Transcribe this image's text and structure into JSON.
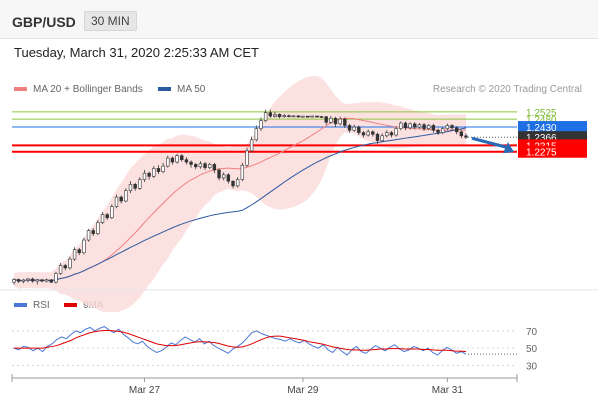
{
  "header": {
    "symbol": "GBP/USD",
    "timeframe": "30 MIN"
  },
  "timestamp": "Tuesday, March 31, 2020 2:25:33 AM CET",
  "legend": {
    "main": [
      {
        "label": "MA 20 + Bollinger Bands",
        "color": "#f08080"
      },
      {
        "label": "MA 50",
        "color": "#2a5aa0"
      }
    ],
    "rsi": [
      {
        "label": "RSI",
        "color": "#4a78d4"
      },
      {
        "label": "9MA",
        "color": "#e00000"
      }
    ]
  },
  "copyright": "Research © 2020 Trading Central",
  "chart_data": [
    {
      "type": "line",
      "panel": "price",
      "ylim": [
        1.145,
        1.26
      ],
      "x_ticks": [
        "Mar 27",
        "Mar 29",
        "Mar 31"
      ],
      "candles": [
        [
          1.1455,
          1.1472,
          1.144,
          1.148
        ],
        [
          1.1472,
          1.146,
          1.145,
          1.1478
        ],
        [
          1.146,
          1.1468,
          1.1448,
          1.1476
        ],
        [
          1.1468,
          1.1475,
          1.1455,
          1.1482
        ],
        [
          1.1475,
          1.1462,
          1.1452,
          1.1484
        ],
        [
          1.1462,
          1.147,
          1.144,
          1.1476
        ],
        [
          1.147,
          1.1462,
          1.1455,
          1.1475
        ],
        [
          1.1462,
          1.147,
          1.1454,
          1.1478
        ],
        [
          1.147,
          1.1455,
          1.145,
          1.1475
        ],
        [
          1.1455,
          1.151,
          1.1448,
          1.152
        ],
        [
          1.151,
          1.156,
          1.1502,
          1.1575
        ],
        [
          1.156,
          1.1545,
          1.153,
          1.157
        ],
        [
          1.1545,
          1.16,
          1.1535,
          1.1615
        ],
        [
          1.16,
          1.166,
          1.159,
          1.1675
        ],
        [
          1.166,
          1.164,
          1.1625,
          1.167
        ],
        [
          1.164,
          1.172,
          1.163,
          1.1735
        ],
        [
          1.172,
          1.178,
          1.171,
          1.179
        ],
        [
          1.178,
          1.176,
          1.1745,
          1.1795
        ],
        [
          1.176,
          1.183,
          1.175,
          1.1845
        ],
        [
          1.183,
          1.188,
          1.182,
          1.1895
        ],
        [
          1.188,
          1.186,
          1.1845,
          1.189
        ],
        [
          1.186,
          1.193,
          1.1852,
          1.1945
        ],
        [
          1.193,
          1.199,
          1.192,
          1.2005
        ],
        [
          1.199,
          1.1965,
          1.195,
          1.2
        ],
        [
          1.1965,
          1.203,
          1.1958,
          1.2045
        ],
        [
          1.203,
          1.207,
          1.2015,
          1.209
        ],
        [
          1.207,
          1.2045,
          1.203,
          1.208
        ],
        [
          1.2045,
          1.21,
          1.2035,
          1.2115
        ],
        [
          1.21,
          1.214,
          1.2085,
          1.216
        ],
        [
          1.214,
          1.212,
          1.21,
          1.215
        ],
        [
          1.212,
          1.217,
          1.211,
          1.2185
        ],
        [
          1.217,
          1.215,
          1.2135,
          1.219
        ],
        [
          1.215,
          1.2185,
          1.214,
          1.2205
        ],
        [
          1.2185,
          1.2235,
          1.2175,
          1.225
        ],
        [
          1.2235,
          1.221,
          1.2195,
          1.2245
        ],
        [
          1.221,
          1.225,
          1.22,
          1.2262
        ],
        [
          1.225,
          1.2225,
          1.2212,
          1.226
        ],
        [
          1.2225,
          1.221,
          1.2195,
          1.224
        ],
        [
          1.221,
          1.2195,
          1.2175,
          1.222
        ],
        [
          1.2195,
          1.218,
          1.2165,
          1.2205
        ],
        [
          1.218,
          1.22,
          1.2168,
          1.2215
        ],
        [
          1.22,
          1.2175,
          1.216,
          1.221
        ],
        [
          1.2175,
          1.2195,
          1.2165,
          1.2205
        ],
        [
          1.2195,
          1.216,
          1.214,
          1.2205
        ],
        [
          1.216,
          1.211,
          1.2095,
          1.217
        ],
        [
          1.211,
          1.213,
          1.2095,
          1.2145
        ],
        [
          1.213,
          1.209,
          1.2075,
          1.214
        ],
        [
          1.209,
          1.206,
          1.2045,
          1.2095
        ],
        [
          1.206,
          1.21,
          1.205,
          1.2115
        ],
        [
          1.21,
          1.219,
          1.209,
          1.2205
        ],
        [
          1.219,
          1.228,
          1.218,
          1.23
        ],
        [
          1.228,
          1.235,
          1.227,
          1.237
        ],
        [
          1.235,
          1.242,
          1.234,
          1.244
        ],
        [
          1.242,
          1.247,
          1.2405,
          1.249
        ],
        [
          1.247,
          1.252,
          1.246,
          1.254
        ],
        [
          1.252,
          1.25,
          1.2488,
          1.254
        ],
        [
          1.25,
          1.251,
          1.249,
          1.2525
        ],
        [
          1.251,
          1.2495,
          1.2485,
          1.2515
        ],
        [
          1.2495,
          1.2502,
          1.2488,
          1.2512
        ],
        [
          1.2502,
          1.2496,
          1.249,
          1.2508
        ],
        [
          1.2496,
          1.25,
          1.2492,
          1.2505
        ],
        [
          1.25,
          1.2494,
          1.2488,
          1.2504
        ],
        [
          1.2494,
          1.2498,
          1.249,
          1.2502
        ],
        [
          1.2498,
          1.2495,
          1.249,
          1.2501
        ],
        [
          1.2495,
          1.2499,
          1.2491,
          1.2502
        ],
        [
          1.2499,
          1.2496,
          1.2492,
          1.2501
        ],
        [
          1.2496,
          1.2495,
          1.249,
          1.25
        ],
        [
          1.2495,
          1.246,
          1.2445,
          1.25
        ],
        [
          1.246,
          1.2485,
          1.245,
          1.25
        ],
        [
          1.2485,
          1.245,
          1.243,
          1.2495
        ],
        [
          1.245,
          1.248,
          1.244,
          1.2495
        ],
        [
          1.248,
          1.244,
          1.2425,
          1.249
        ],
        [
          1.244,
          1.241,
          1.2395,
          1.245
        ],
        [
          1.241,
          1.243,
          1.24,
          1.2445
        ],
        [
          1.243,
          1.2395,
          1.238,
          1.244
        ],
        [
          1.2395,
          1.238,
          1.2365,
          1.2405
        ],
        [
          1.238,
          1.24,
          1.237,
          1.2415
        ],
        [
          1.24,
          1.2385,
          1.237,
          1.241
        ],
        [
          1.2385,
          1.2345,
          1.2325,
          1.2395
        ],
        [
          1.2345,
          1.2375,
          1.2335,
          1.239
        ],
        [
          1.2375,
          1.2395,
          1.2365,
          1.241
        ],
        [
          1.2395,
          1.238,
          1.2365,
          1.2405
        ],
        [
          1.238,
          1.242,
          1.237,
          1.2435
        ],
        [
          1.242,
          1.2455,
          1.241,
          1.2465
        ],
        [
          1.2455,
          1.2425,
          1.241,
          1.2465
        ],
        [
          1.2425,
          1.245,
          1.2415,
          1.246
        ],
        [
          1.245,
          1.243,
          1.2415,
          1.246
        ],
        [
          1.243,
          1.2445,
          1.242,
          1.2455
        ],
        [
          1.2445,
          1.242,
          1.2405,
          1.2455
        ],
        [
          1.242,
          1.244,
          1.241,
          1.245
        ],
        [
          1.244,
          1.241,
          1.2395,
          1.245
        ],
        [
          1.241,
          1.2395,
          1.238,
          1.242
        ],
        [
          1.2395,
          1.242,
          1.2385,
          1.243
        ],
        [
          1.242,
          1.244,
          1.241,
          1.2452
        ],
        [
          1.244,
          1.2425,
          1.241,
          1.2448
        ],
        [
          1.2425,
          1.24,
          1.2385,
          1.2435
        ],
        [
          1.24,
          1.2375,
          1.236,
          1.241
        ],
        [
          1.2375,
          1.2366,
          1.2355,
          1.239
        ]
      ],
      "levels": [
        {
          "label": "1.2525",
          "value": 1.2525,
          "type": "resistance",
          "color": "#8dc63f"
        },
        {
          "label": "1.2480",
          "value": 1.248,
          "type": "resistance",
          "color": "#8dc63f"
        },
        {
          "label": "1.2430",
          "value": 1.243,
          "type": "pivot",
          "color": "#1f6fe5"
        },
        {
          "label": "1.2366",
          "value": 1.2366,
          "type": "last",
          "color": "#333333"
        },
        {
          "label": "1.2315",
          "value": 1.2315,
          "type": "target",
          "color": "#ff0000"
        },
        {
          "label": "1.2275",
          "value": 1.2275,
          "type": "target",
          "color": "#ff0000"
        }
      ],
      "direction": "down"
    },
    {
      "type": "line",
      "panel": "rsi",
      "ylim": [
        20,
        85
      ],
      "yticks": [
        "70",
        "50",
        "30"
      ],
      "series": [
        {
          "name": "RSI",
          "values": [
            50,
            48,
            52,
            51,
            47,
            50,
            46,
            52,
            55,
            60,
            63,
            61,
            66,
            70,
            68,
            72,
            74,
            70,
            73,
            75,
            71,
            68,
            72,
            66,
            62,
            57,
            55,
            58,
            52,
            48,
            45,
            47,
            51,
            56,
            54,
            59,
            63,
            60,
            57,
            61,
            55,
            58,
            53,
            50,
            47,
            44,
            49,
            52,
            56,
            62,
            68,
            70,
            67,
            65,
            63,
            61,
            60,
            58,
            61,
            58,
            56,
            59,
            55,
            52,
            50,
            54,
            48,
            45,
            51,
            46,
            42,
            48,
            52,
            46,
            44,
            49,
            53,
            50,
            47,
            51,
            54,
            49,
            46,
            48,
            52,
            50,
            47,
            50,
            45,
            42,
            47,
            51,
            48,
            44,
            46,
            43
          ]
        },
        {
          "name": "9MA",
          "values": [
            50,
            50,
            50,
            50,
            50,
            50,
            50,
            51,
            52,
            53,
            55,
            57,
            59,
            62,
            64,
            66,
            68,
            69,
            70,
            70.5,
            70.5,
            70,
            69.5,
            68.5,
            67,
            65,
            63,
            61,
            59,
            57,
            55,
            54,
            53,
            53,
            53,
            54,
            55,
            56,
            57,
            57.5,
            57.5,
            57,
            56.5,
            55.5,
            54,
            52.5,
            51.5,
            51,
            51.5,
            53,
            55,
            57.5,
            60,
            62,
            63.5,
            64,
            64,
            63,
            62,
            61,
            60,
            59,
            57.5,
            56.5,
            55.5,
            54.5,
            53,
            51.5,
            50.5,
            49.5,
            48.5,
            48,
            48,
            47.5,
            47.5,
            48,
            48.5,
            49,
            49,
            49.5,
            49.5,
            49.5,
            49,
            49,
            49,
            49,
            48.5,
            48.5,
            48,
            47.5,
            47.5,
            47.5,
            47,
            46.5,
            46.5,
            46
          ]
        }
      ]
    }
  ]
}
